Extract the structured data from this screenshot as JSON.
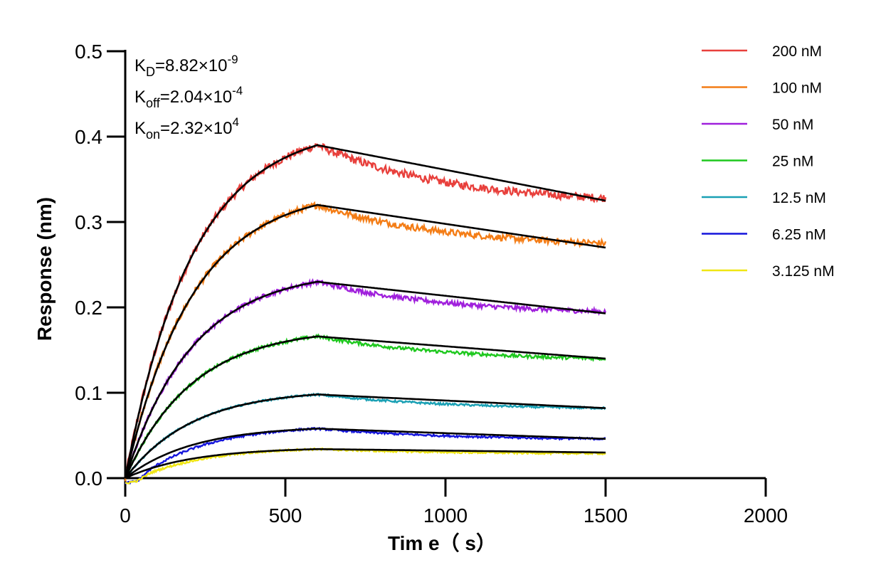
{
  "chart_data": {
    "type": "line",
    "xlabel": "Tim e（ s）",
    "ylabel": "Response (nm)",
    "xlim": [
      0,
      2000
    ],
    "ylim": [
      0,
      0.5
    ],
    "x_ticks": [
      "0",
      "500",
      "1000",
      "1500",
      "2000"
    ],
    "y_ticks": [
      "0.0",
      "0.1",
      "0.2",
      "0.3",
      "0.4",
      "0.5"
    ],
    "grid": false,
    "legend_position": "top-right",
    "association_end_s": 600,
    "dissociation_end_s": 1500,
    "fit_color": "#000000",
    "kinetics": [
      {
        "symbol": "K",
        "sub": "D",
        "text": "=8.82×10",
        "exp": "-9"
      },
      {
        "symbol": "K",
        "sub": "off",
        "text": "=2.04×10",
        "exp": "-4"
      },
      {
        "symbol": "K",
        "sub": "on",
        "text": "=2.32×10",
        "exp": "4"
      }
    ],
    "series": [
      {
        "name": "200 nM",
        "color": "#e8403c",
        "peak": 0.39,
        "end": 0.328,
        "fit_end": 0.325
      },
      {
        "name": "100 nM",
        "color": "#f47d16",
        "peak": 0.32,
        "end": 0.275,
        "fit_end": 0.27
      },
      {
        "name": "50 nM",
        "color": "#a020dc",
        "peak": 0.23,
        "end": 0.195,
        "fit_end": 0.193
      },
      {
        "name": "25 nM",
        "color": "#1ec81e",
        "peak": 0.166,
        "end": 0.14,
        "fit_end": 0.14
      },
      {
        "name": "12.5 nM",
        "color": "#1aa0b4",
        "peak": 0.098,
        "end": 0.082,
        "fit_end": 0.082
      },
      {
        "name": "6.25 nM",
        "color": "#1414dc",
        "peak": 0.058,
        "end": 0.046,
        "fit_end": 0.046
      },
      {
        "name": "3.125 nM",
        "color": "#f0e614",
        "peak": 0.034,
        "end": 0.029,
        "fit_end": 0.03
      }
    ]
  }
}
